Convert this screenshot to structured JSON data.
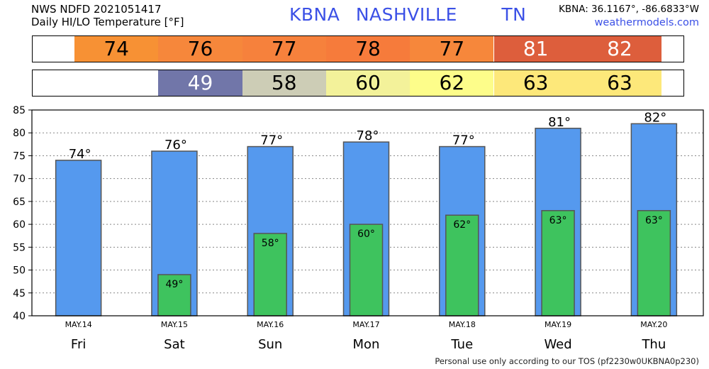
{
  "header": {
    "line1": "NWS NDFD 2021051417",
    "line2": "Daily HI/LO Temperature [°F]",
    "station": "KBNA",
    "city": "NASHVILLE",
    "state": "TN",
    "coords": "KBNA: 36.1167°, -86.6833°W",
    "site": "weathermodels.com"
  },
  "colors": {
    "hi_bar": "#5599ee",
    "lo_bar": "#3ec35e",
    "bar_outline": "#555555",
    "grid": "#888888",
    "hi_strip": [
      "#f79134",
      "#f6873b",
      "#f6813c",
      "#f67b3b",
      "#f6873b",
      "#dd5e3c",
      "#dd5e3c"
    ],
    "lo_strip": [
      null,
      "#7176a9",
      "#cdcdb6",
      "#f3f29a",
      "#fdfd8a",
      "#fde87a",
      "#fde87a"
    ]
  },
  "strips": {
    "hi": [
      "74",
      "76",
      "77",
      "78",
      "77",
      "81",
      "82"
    ],
    "lo": [
      "",
      "49",
      "58",
      "60",
      "62",
      "63",
      "63"
    ]
  },
  "chart_data": {
    "type": "bar",
    "categories": [
      "MAY.14",
      "MAY.15",
      "MAY.16",
      "MAY.17",
      "MAY.18",
      "MAY.19",
      "MAY.20"
    ],
    "days": [
      "Fri",
      "Sat",
      "Sun",
      "Mon",
      "Tue",
      "Wed",
      "Thu"
    ],
    "series": [
      {
        "name": "HI",
        "values": [
          74,
          76,
          77,
          78,
          77,
          81,
          82
        ],
        "labels": [
          "74°",
          "76°",
          "77°",
          "78°",
          "77°",
          "81°",
          "82°"
        ]
      },
      {
        "name": "LO",
        "values": [
          null,
          49,
          58,
          60,
          62,
          63,
          63
        ],
        "labels": [
          "",
          "49°",
          "58°",
          "60°",
          "62°",
          "63°",
          "63°"
        ]
      }
    ],
    "ylim": [
      40,
      85
    ],
    "yticks": [
      "40",
      "45",
      "50",
      "55",
      "60",
      "65",
      "70",
      "75",
      "80",
      "85"
    ],
    "grid": true
  },
  "footer": "Personal use only according to our TOS (pf2230w0UKBNA0p230)"
}
